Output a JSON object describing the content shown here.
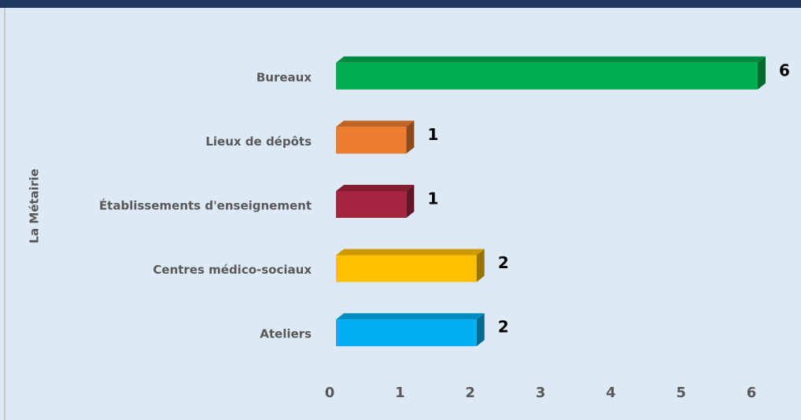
{
  "chart_data": {
    "type": "bar",
    "orientation": "horizontal",
    "y_label": "La Métairie",
    "categories": [
      "Bureaux",
      "Lieux de dépôts",
      "Établissements d'enseignement",
      "Centres médico-sociaux",
      "Ateliers"
    ],
    "values": [
      6,
      1,
      1,
      2,
      2
    ],
    "colors": [
      "#00b050",
      "#ed7d31",
      "#a5243f",
      "#ffc000",
      "#00b0f0"
    ],
    "xlim": [
      0,
      6
    ],
    "xticks": [
      0,
      1,
      2,
      3,
      4,
      5,
      6
    ],
    "grid": false
  }
}
